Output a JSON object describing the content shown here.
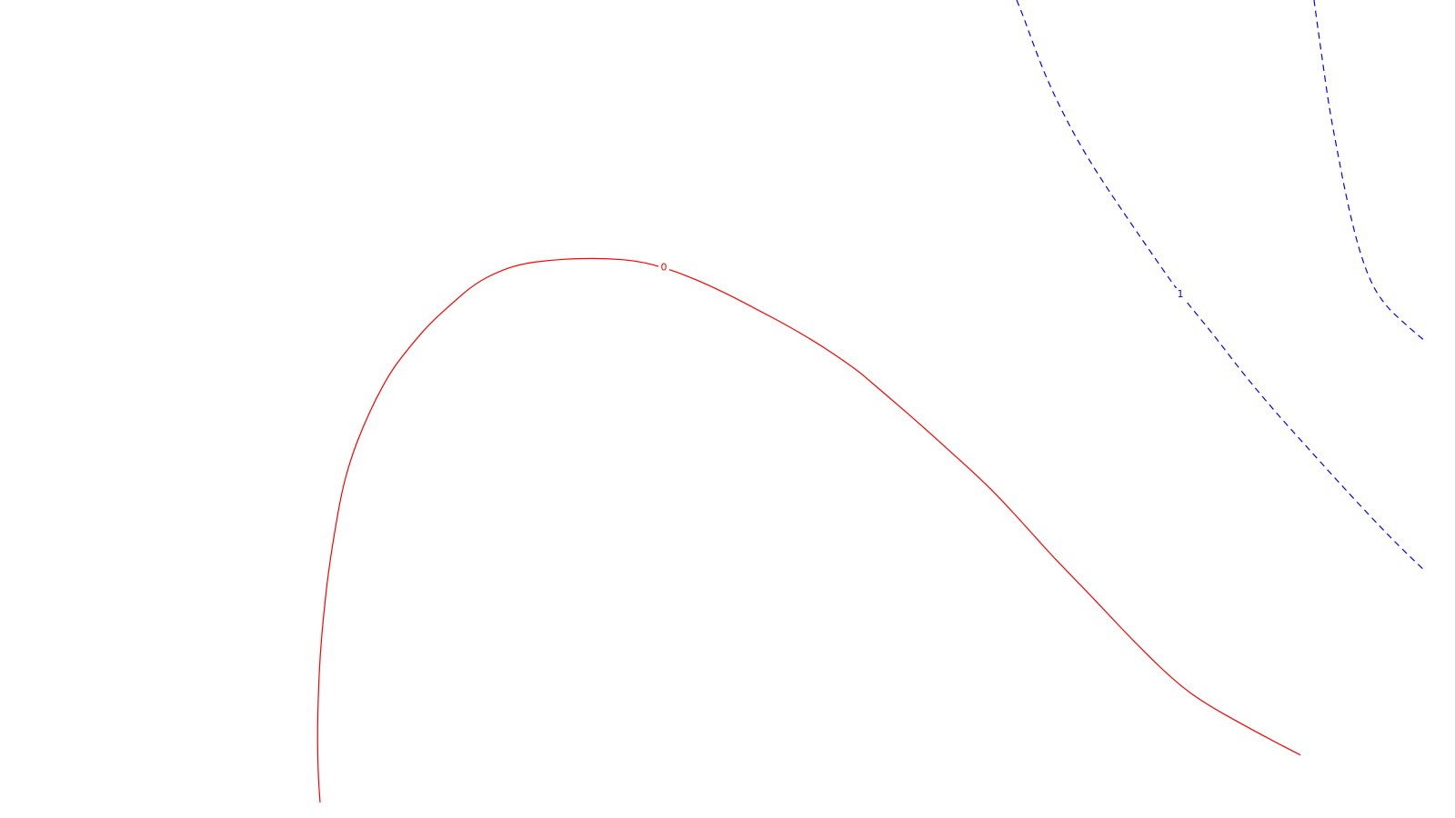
{
  "chart_data": {
    "type": "contour",
    "title": "",
    "xlabel": "",
    "ylabel": "",
    "grid": false,
    "levels": [
      {
        "name": "level-0",
        "label": "0",
        "color": "#ff0000",
        "style": "solid",
        "curves": [
          {
            "x": [
              0.352,
              0.35,
              0.349,
              0.35,
              0.352,
              0.356,
              0.361,
              0.368,
              0.376,
              0.386,
              0.399,
              0.414,
              0.431,
              0.452,
              0.473,
              0.498,
              0.522,
              0.548,
              0.572,
              0.604,
              0.636,
              0.668,
              0.701,
              0.73,
              0.757,
              0.782,
              0.808,
              0.837,
              0.869,
              0.904,
              0.942,
              0.961,
              0.982,
              1.01,
              1.043,
              1.076,
              1.103,
              1.13,
              1.159,
              1.189,
              1.218,
              1.246,
              1.275,
              1.301,
              1.327,
              1.362,
              1.397,
              1.43
            ],
            "y": [
              0.019,
              0.05,
              0.1,
              0.15,
              0.2,
              0.25,
              0.3,
              0.35,
              0.4,
              0.44,
              0.478,
              0.514,
              0.548,
              0.578,
              0.605,
              0.63,
              0.653,
              0.668,
              0.677,
              0.682,
              0.684,
              0.684,
              0.681,
              0.673,
              0.662,
              0.65,
              0.636,
              0.619,
              0.6,
              0.577,
              0.548,
              0.53,
              0.51,
              0.483,
              0.45,
              0.417,
              0.387,
              0.354,
              0.318,
              0.284,
              0.25,
              0.217,
              0.185,
              0.159,
              0.139,
              0.117,
              0.096,
              0.077
            ]
          }
        ]
      },
      {
        "name": "level-1",
        "label": "1",
        "color": "#0000ff",
        "style": "dashed",
        "curves": [
          {
            "x": [
              1.118,
              1.126,
              1.136,
              1.148,
              1.163,
              1.182,
              1.205,
              1.232,
              1.264,
              1.298,
              1.333,
              1.368,
              1.402,
              1.436,
              1.47,
              1.505,
              1.537,
              1.568
            ],
            "y": [
              1.0,
              0.978,
              0.947,
              0.912,
              0.875,
              0.834,
              0.791,
              0.746,
              0.694,
              0.64,
              0.593,
              0.542,
              0.497,
              0.455,
              0.413,
              0.371,
              0.334,
              0.301
            ]
          },
          {
            "x": [
              1.445,
              1.449,
              1.455,
              1.462,
              1.471,
              1.481,
              1.493,
              1.507,
              1.523,
              1.543,
              1.566
            ],
            "y": [
              1.0,
              0.967,
              0.92,
              0.866,
              0.813,
              0.756,
              0.7,
              0.655,
              0.627,
              0.606,
              0.584
            ]
          }
        ]
      }
    ],
    "xlim": [
      0,
      1.6
    ],
    "ylim": [
      0,
      1.0
    ]
  }
}
